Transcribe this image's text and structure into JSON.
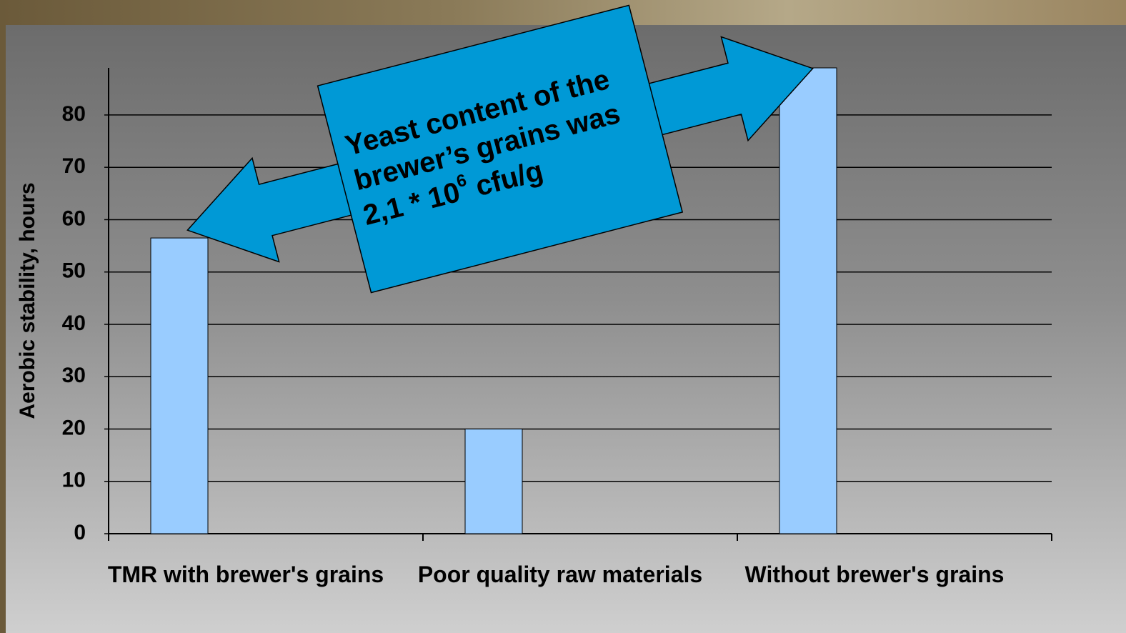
{
  "chart_data": {
    "type": "bar",
    "y_label": "Aerobic stability, hours",
    "categories": [
      "TMR with brewer's grains",
      "Poor quality raw materials",
      "Without brewer's grains"
    ],
    "values": [
      56.5,
      20,
      89
    ],
    "color": "#99ccff",
    "ylim": [
      0,
      89
    ],
    "yticks": [
      0,
      10,
      20,
      30,
      40,
      50,
      60,
      70,
      80
    ],
    "grid": true,
    "annotation": {
      "lines": [
        "Yeast content of the",
        "brewer’s grains was"
      ],
      "last_line": [
        "2,1 * 10",
        "6",
        " cfu/g"
      ]
    }
  }
}
